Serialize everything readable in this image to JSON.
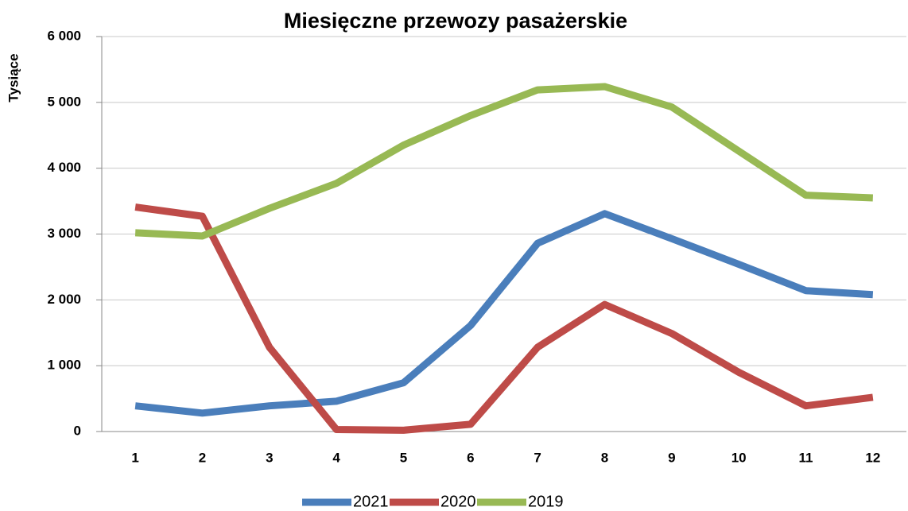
{
  "chart_data": {
    "type": "line",
    "title": "Miesięczne przewozy pasażerskie",
    "y_axis_label": "Tysiące",
    "categories": [
      "1",
      "2",
      "3",
      "4",
      "5",
      "6",
      "7",
      "8",
      "9",
      "10",
      "11",
      "12"
    ],
    "series": [
      {
        "name": "2021",
        "color": "#4a7ebb",
        "values": [
          390,
          280,
          390,
          460,
          740,
          1610,
          2860,
          3310,
          2930,
          2540,
          2140,
          2080
        ]
      },
      {
        "name": "2020",
        "color": "#be4b48",
        "values": [
          3410,
          3270,
          1280,
          30,
          20,
          110,
          1280,
          1930,
          1490,
          900,
          390,
          520
        ]
      },
      {
        "name": "2019",
        "color": "#98b954",
        "values": [
          3020,
          2970,
          3390,
          3770,
          4350,
          4800,
          5190,
          5240,
          4930,
          4260,
          3590,
          3550
        ]
      }
    ],
    "ylim": [
      0,
      6000
    ],
    "yticks": [
      {
        "value": 0,
        "label": "0"
      },
      {
        "value": 1000,
        "label": "1 000"
      },
      {
        "value": 2000,
        "label": "2 000"
      },
      {
        "value": 3000,
        "label": "3 000"
      },
      {
        "value": 4000,
        "label": "4 000"
      },
      {
        "value": 5000,
        "label": "5 000"
      },
      {
        "value": 6000,
        "label": "6 000"
      }
    ],
    "grid": true,
    "legend": "bottom"
  }
}
